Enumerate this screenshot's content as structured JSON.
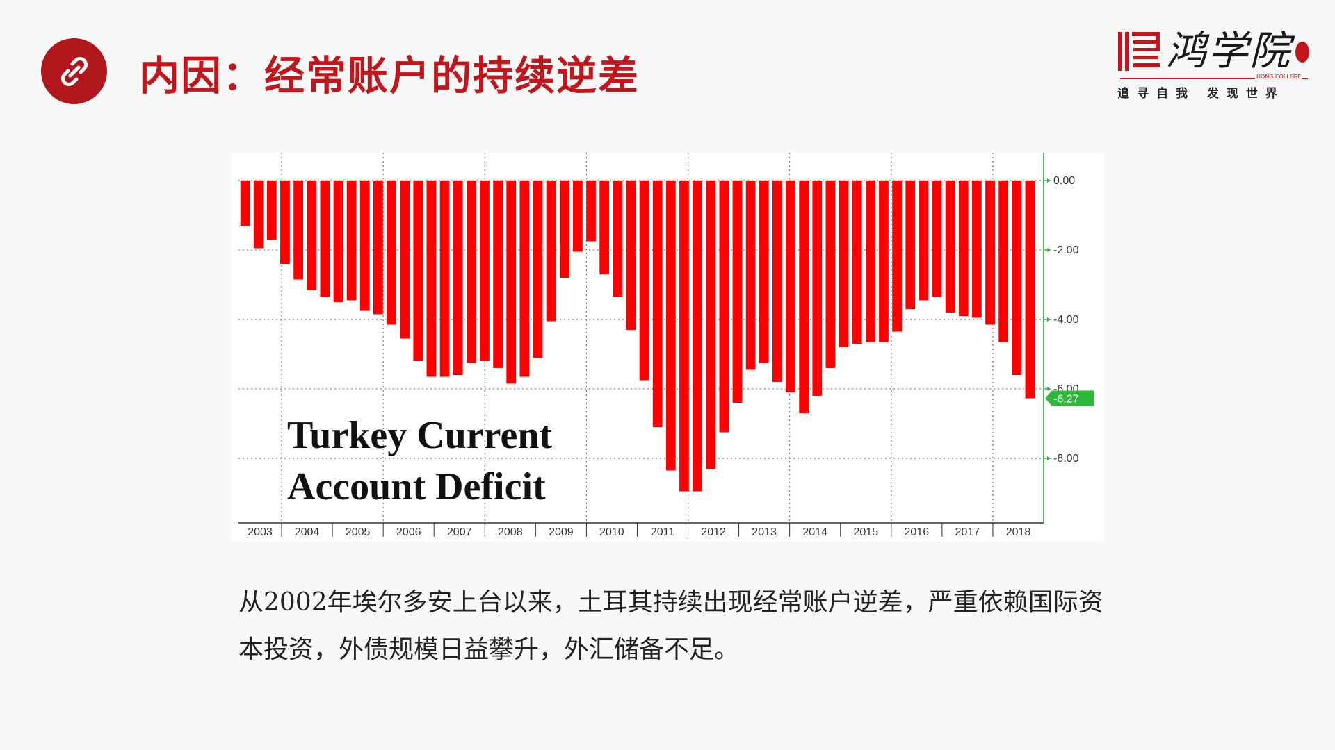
{
  "header": {
    "title": "内因：经常账户的持续逆差",
    "icon": "link-icon"
  },
  "logo": {
    "name": "鸿学院",
    "english": "HONG COLLEGE",
    "tagline": "追寻自我 发现世界"
  },
  "chart_data": {
    "type": "bar",
    "title": "Turkey Current Account Deficit",
    "title_lines": [
      "Turkey Current",
      "Account Deficit"
    ],
    "xlabel": "",
    "ylabel": "",
    "ylim": [
      -10,
      0.8
    ],
    "yticks": [
      "0.00",
      "-2.00",
      "-4.00",
      "-6.00",
      "-8.00"
    ],
    "ytick_values": [
      0,
      -2,
      -4,
      -6,
      -8
    ],
    "year_labels": [
      "2003",
      "2004",
      "2005",
      "2006",
      "2007",
      "2008",
      "2009",
      "2010",
      "2011",
      "2012",
      "2013",
      "2014",
      "2015",
      "2016",
      "2017",
      "2018"
    ],
    "last_value_label": "-6.27",
    "last_value": -6.27,
    "values": [
      -1.3,
      -1.95,
      -1.7,
      -2.4,
      -2.85,
      -3.15,
      -3.35,
      -3.5,
      -3.45,
      -3.75,
      -3.85,
      -4.15,
      -4.55,
      -5.2,
      -5.65,
      -5.65,
      -5.6,
      -5.25,
      -5.2,
      -5.4,
      -5.85,
      -5.65,
      -5.1,
      -4.05,
      -2.8,
      -2.05,
      -1.75,
      -2.7,
      -3.35,
      -4.3,
      -5.75,
      -7.1,
      -8.35,
      -8.95,
      -8.95,
      -8.3,
      -7.25,
      -6.4,
      -5.45,
      -5.25,
      -5.8,
      -6.1,
      -6.7,
      -6.2,
      -5.4,
      -4.8,
      -4.7,
      -4.65,
      -4.65,
      -4.35,
      -3.7,
      -3.45,
      -3.35,
      -3.8,
      -3.9,
      -3.95,
      -4.15,
      -4.65,
      -5.6,
      -6.27
    ],
    "grid": true,
    "bar_color": "#ff0000",
    "axis_color": "#3cb043"
  },
  "description": "从2002年埃尔多安上台以来，土耳其持续出现经常账户逆差，严重依赖国际资本投资，外债规模日益攀升，外汇储备不足。"
}
